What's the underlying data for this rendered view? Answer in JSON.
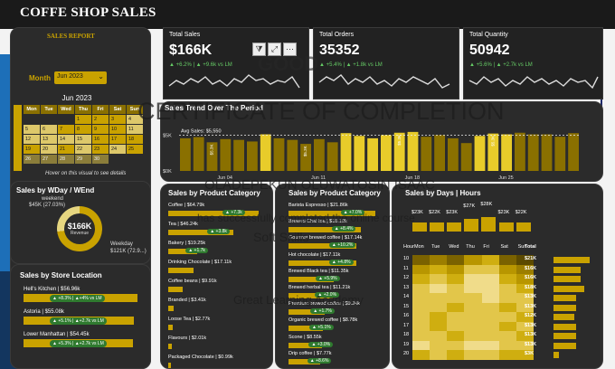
{
  "app": {
    "title": "COFFE SHOP SALES"
  },
  "sidebar": {
    "report_title": "SALES REPORT",
    "month_label": "Month",
    "month_value": "Jun 2023",
    "calendar_title": "Jun 2023",
    "weekdays": [
      "Mon",
      "Tue",
      "Wed",
      "Thu",
      "Fri",
      "Sat",
      "Sun"
    ],
    "weeks": [
      [
        "",
        "",
        "",
        "1",
        "2",
        "3",
        "4"
      ],
      [
        "5",
        "6",
        "7",
        "8",
        "9",
        "10",
        "11"
      ],
      [
        "12",
        "13",
        "14",
        "15",
        "16",
        "17",
        "18"
      ],
      [
        "19",
        "20",
        "21",
        "22",
        "23",
        "24",
        "25"
      ],
      [
        "26",
        "27",
        "28",
        "29",
        "30",
        "",
        ""
      ]
    ],
    "hover_note": "Hover on this visual to see details"
  },
  "wday": {
    "title": "Sales by WDay / WEnd",
    "weekend_label": "weekend",
    "weekend_value": "$45K (27.03%)",
    "center_value": "$166K",
    "center_label": "Revenue",
    "weekday_label": "Weekday",
    "weekday_value": "$121K (72.9...)"
  },
  "store": {
    "title": "Sales by Store Location",
    "rows": [
      {
        "name": "Hell's Kitchen | $56.96k",
        "tag": "▲ +8.3% | ▲+4% vs LM",
        "fill": 1.0
      },
      {
        "name": "Astoria | $55.08k",
        "tag": "▲ +5.1% | ▲+2.7k vs LM",
        "fill": 0.97
      },
      {
        "name": "Lower Manhattan | $54.45k",
        "tag": "▲ +5.3% | ▲+2.7k vs LM",
        "fill": 0.96
      }
    ]
  },
  "kpis": [
    {
      "label": "Total Sales",
      "value": "$166K",
      "change": "▲ +6.2% | ▲ +9.6k vs LM"
    },
    {
      "label": "Total Orders",
      "value": "35352",
      "change": "▲ +5.4% | ▲ +1.8k vs LM"
    },
    {
      "label": "Total Quantity",
      "value": "50942",
      "change": "▲ +5.6% | ▲ +2.7k vs LM"
    }
  ],
  "trend": {
    "title": "Sales Trend Over The Period",
    "avg_label": "Avg Sales: $5,550",
    "y_labels": [
      "$5K",
      "$0K"
    ],
    "x_labels": [
      "Jun 04",
      "Jun 11",
      "Jun 18",
      "Jun 25"
    ],
    "bar_label": "$5.3K"
  },
  "category": {
    "title": "Sales by Product Category",
    "rows": [
      {
        "name": "Coffee | $64.79k",
        "tag": "▲ +7.3k",
        "fill": 1.0
      },
      {
        "name": "Tea | $46.24k",
        "tag": "▲ +3.8k",
        "fill": 0.72
      },
      {
        "name": "Bakery | $19.25k",
        "tag": "▲ +1.7k",
        "fill": 0.32
      },
      {
        "name": "Drinking Chocolate | $17.11k",
        "tag": "",
        "fill": 0.28
      },
      {
        "name": "Coffee beans | $9.91k",
        "tag": "",
        "fill": 0.16
      },
      {
        "name": "Branded | $3.41k",
        "tag": "",
        "fill": 0.06
      },
      {
        "name": "Loose Tea | $2.77k",
        "tag": "",
        "fill": 0.05
      },
      {
        "name": "Flavours | $2.01k",
        "tag": "",
        "fill": 0.04
      },
      {
        "name": "Packaged Chocolate | $0.99k",
        "tag": "",
        "fill": 0.02
      }
    ]
  },
  "product": {
    "title": "Sales by Product Category",
    "rows": [
      {
        "name": "Barista Espresso | $21.86k",
        "tag": "▲ +7.0%",
        "fill": 1.0
      },
      {
        "name": "Brewed Chai tea | $18.19k",
        "tag": "▲ +8.4%",
        "fill": 0.83
      },
      {
        "name": "Gourmet brewed coffee | $17.14k",
        "tag": "▲ +10.2%",
        "fill": 0.78
      },
      {
        "name": "Hot chocolate | $17.11k",
        "tag": "▲ +4.8%",
        "fill": 0.78
      },
      {
        "name": "Brewed Black tea | $11.35k",
        "tag": "▲ +5.9%",
        "fill": 0.52
      },
      {
        "name": "Brewed herbal tea | $11.21k",
        "tag": "▲ +2.0%",
        "fill": 0.51
      },
      {
        "name": "Premium brewed coffee | $9.24k",
        "tag": "▲ +1.7%",
        "fill": 0.42
      },
      {
        "name": "Organic brewed coffee | $8.78k",
        "tag": "▲ +5.1%",
        "fill": 0.4
      },
      {
        "name": "Scone | $8.55k",
        "tag": "▲ +3.0%",
        "fill": 0.39
      },
      {
        "name": "Drip coffee | $7.77k",
        "tag": "▲ +8.6%",
        "fill": 0.36
      }
    ]
  },
  "days": {
    "title": "Sales by Days | Hours",
    "day_totals": [
      "$23K",
      "$22K",
      "$23K",
      "$27K",
      "$28K",
      "$23K",
      "$22K"
    ],
    "header": [
      "Hour",
      "Mon",
      "Tue",
      "Wed",
      "Thu",
      "Fri",
      "Sat",
      "Sun",
      "Total"
    ],
    "hours": [
      "10",
      "11",
      "12",
      "13",
      "14",
      "15",
      "16",
      "17",
      "18",
      "19",
      "20"
    ],
    "hour_totals": [
      "$21K",
      "$16K",
      "$16K",
      "$18K",
      "$13K",
      "$13K",
      "$12K",
      "$13K",
      "$13K",
      "$13K",
      "$3K"
    ]
  },
  "watermark": {
    "line1": "CERTIFICATE OF COMPLETION",
    "line2": "OLADEPEKUN OLUWATOSIN ISAAC",
    "line3": "has successfully completed the online course",
    "line4": "Soft Skills",
    "line5": "Great Learning Academy",
    "logo": "GOOD"
  },
  "colors": {
    "accent": "#c9a200",
    "panel": "#2b2b2b",
    "positive": "#2f7a2f"
  }
}
